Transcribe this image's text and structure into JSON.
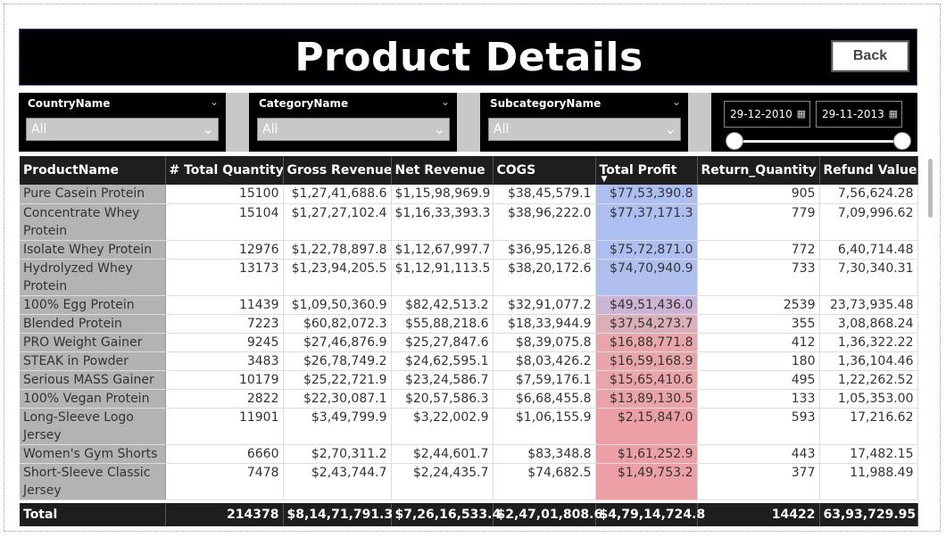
{
  "header": {
    "title": "Product Details",
    "back_label": "Back"
  },
  "filters": {
    "country": {
      "label": "CountryName",
      "value": "All"
    },
    "category": {
      "label": "CategoryName",
      "value": "All"
    },
    "subcategory": {
      "label": "SubcategoryName",
      "value": "All"
    },
    "date_start": "29-12-2010",
    "date_end": "29-11-2013"
  },
  "table": {
    "columns": [
      "ProductName",
      "# Total Quantity",
      "Gross Revenue",
      "Net Revenue",
      "COGS",
      "Total Profit",
      "Return_Quantity",
      "Refund Value"
    ],
    "sorted_column": "Total Profit",
    "rows": [
      {
        "name": "Pure Casein Protein",
        "qty": "15100",
        "gross": "$1,27,41,688.6",
        "net": "$1,15,98,969.9",
        "cogs": "$38,45,579.1",
        "profit": "$77,53,390.8",
        "ret": "905",
        "refund": "7,56,624.28",
        "profit_color": "#adbff0",
        "lines": 1
      },
      {
        "name": "Concentrate Whey Protein",
        "qty": "15104",
        "gross": "$1,27,27,102.4",
        "net": "$1,16,33,393.3",
        "cogs": "$38,96,222.0",
        "profit": "$77,37,171.3",
        "ret": "779",
        "refund": "7,09,996.62",
        "profit_color": "#adbff0",
        "lines": 2
      },
      {
        "name": "Isolate Whey Protein",
        "qty": "12976",
        "gross": "$1,22,78,897.8",
        "net": "$1,12,67,997.7",
        "cogs": "$36,95,126.8",
        "profit": "$75,72,871.0",
        "ret": "772",
        "refund": "6,40,714.48",
        "profit_color": "#adbff0",
        "lines": 1
      },
      {
        "name": "Hydrolyzed Whey Protein",
        "qty": "13173",
        "gross": "$1,23,94,205.5",
        "net": "$1,12,91,113.5",
        "cogs": "$38,20,172.6",
        "profit": "$74,70,940.9",
        "ret": "733",
        "refund": "7,30,340.31",
        "profit_color": "#afc0ee",
        "lines": 2
      },
      {
        "name": "100% Egg Protein",
        "qty": "11439",
        "gross": "$1,09,50,360.9",
        "net": "$82,42,513.2",
        "cogs": "$32,91,077.2",
        "profit": "$49,51,436.0",
        "ret": "2539",
        "refund": "23,73,935.48",
        "profit_color": "#cdb4d4",
        "lines": 1
      },
      {
        "name": "Blended Protein",
        "qty": "7223",
        "gross": "$60,82,072.3",
        "net": "$55,88,218.6",
        "cogs": "$18,33,944.9",
        "profit": "$37,54,273.7",
        "ret": "355",
        "refund": "3,08,868.24",
        "profit_color": "#dcaeb8",
        "lines": 1
      },
      {
        "name": "PRO Weight Gainer",
        "qty": "9245",
        "gross": "$27,46,876.9",
        "net": "$25,27,847.6",
        "cogs": "$8,39,075.8",
        "profit": "$16,88,771.8",
        "ret": "412",
        "refund": "1,36,322.22",
        "profit_color": "#e8a6ab",
        "lines": 1
      },
      {
        "name": "STEAK in Powder",
        "qty": "3483",
        "gross": "$26,78,749.2",
        "net": "$24,62,595.1",
        "cogs": "$8,03,426.2",
        "profit": "$16,59,168.9",
        "ret": "180",
        "refund": "1,36,104.46",
        "profit_color": "#e8a6ab",
        "lines": 1
      },
      {
        "name": "Serious MASS Gainer",
        "qty": "10179",
        "gross": "$25,22,721.9",
        "net": "$23,24,586.7",
        "cogs": "$7,59,176.1",
        "profit": "$15,65,410.6",
        "ret": "495",
        "refund": "1,22,262.52",
        "profit_color": "#e9a5aa",
        "lines": 1
      },
      {
        "name": "100% Vegan Protein",
        "qty": "2822",
        "gross": "$22,30,087.1",
        "net": "$20,57,586.3",
        "cogs": "$6,68,455.8",
        "profit": "$13,89,130.5",
        "ret": "133",
        "refund": "1,05,353.00",
        "profit_color": "#eaa4a9",
        "lines": 1
      },
      {
        "name": "Long-Sleeve Logo Jersey",
        "qty": "11901",
        "gross": "$3,49,799.9",
        "net": "$3,22,002.9",
        "cogs": "$1,06,155.9",
        "profit": "$2,15,847.0",
        "ret": "593",
        "refund": "17,216.62",
        "profit_color": "#ec9fa4",
        "lines": 2
      },
      {
        "name": "Women's Gym Shorts",
        "qty": "6660",
        "gross": "$2,70,311.2",
        "net": "$2,44,601.7",
        "cogs": "$83,348.8",
        "profit": "$1,61,252.9",
        "ret": "443",
        "refund": "17,482.15",
        "profit_color": "#ec9fa4",
        "lines": 1
      },
      {
        "name": "Short-Sleeve Classic Jersey",
        "qty": "7478",
        "gross": "$2,43,744.7",
        "net": "$2,24,435.7",
        "cogs": "$74,682.5",
        "profit": "$1,49,753.2",
        "ret": "377",
        "refund": "11,988.49",
        "profit_color": "#ec9fa4",
        "lines": 2
      }
    ],
    "total": {
      "name": "Total",
      "qty": "214378",
      "gross": "$8,14,71,791.3",
      "net": "$7,26,16,533.4",
      "cogs": "$2,47,01,808.6",
      "profit": "$4,79,14,724.8",
      "ret": "14422",
      "refund": "63,93,729.95"
    }
  }
}
